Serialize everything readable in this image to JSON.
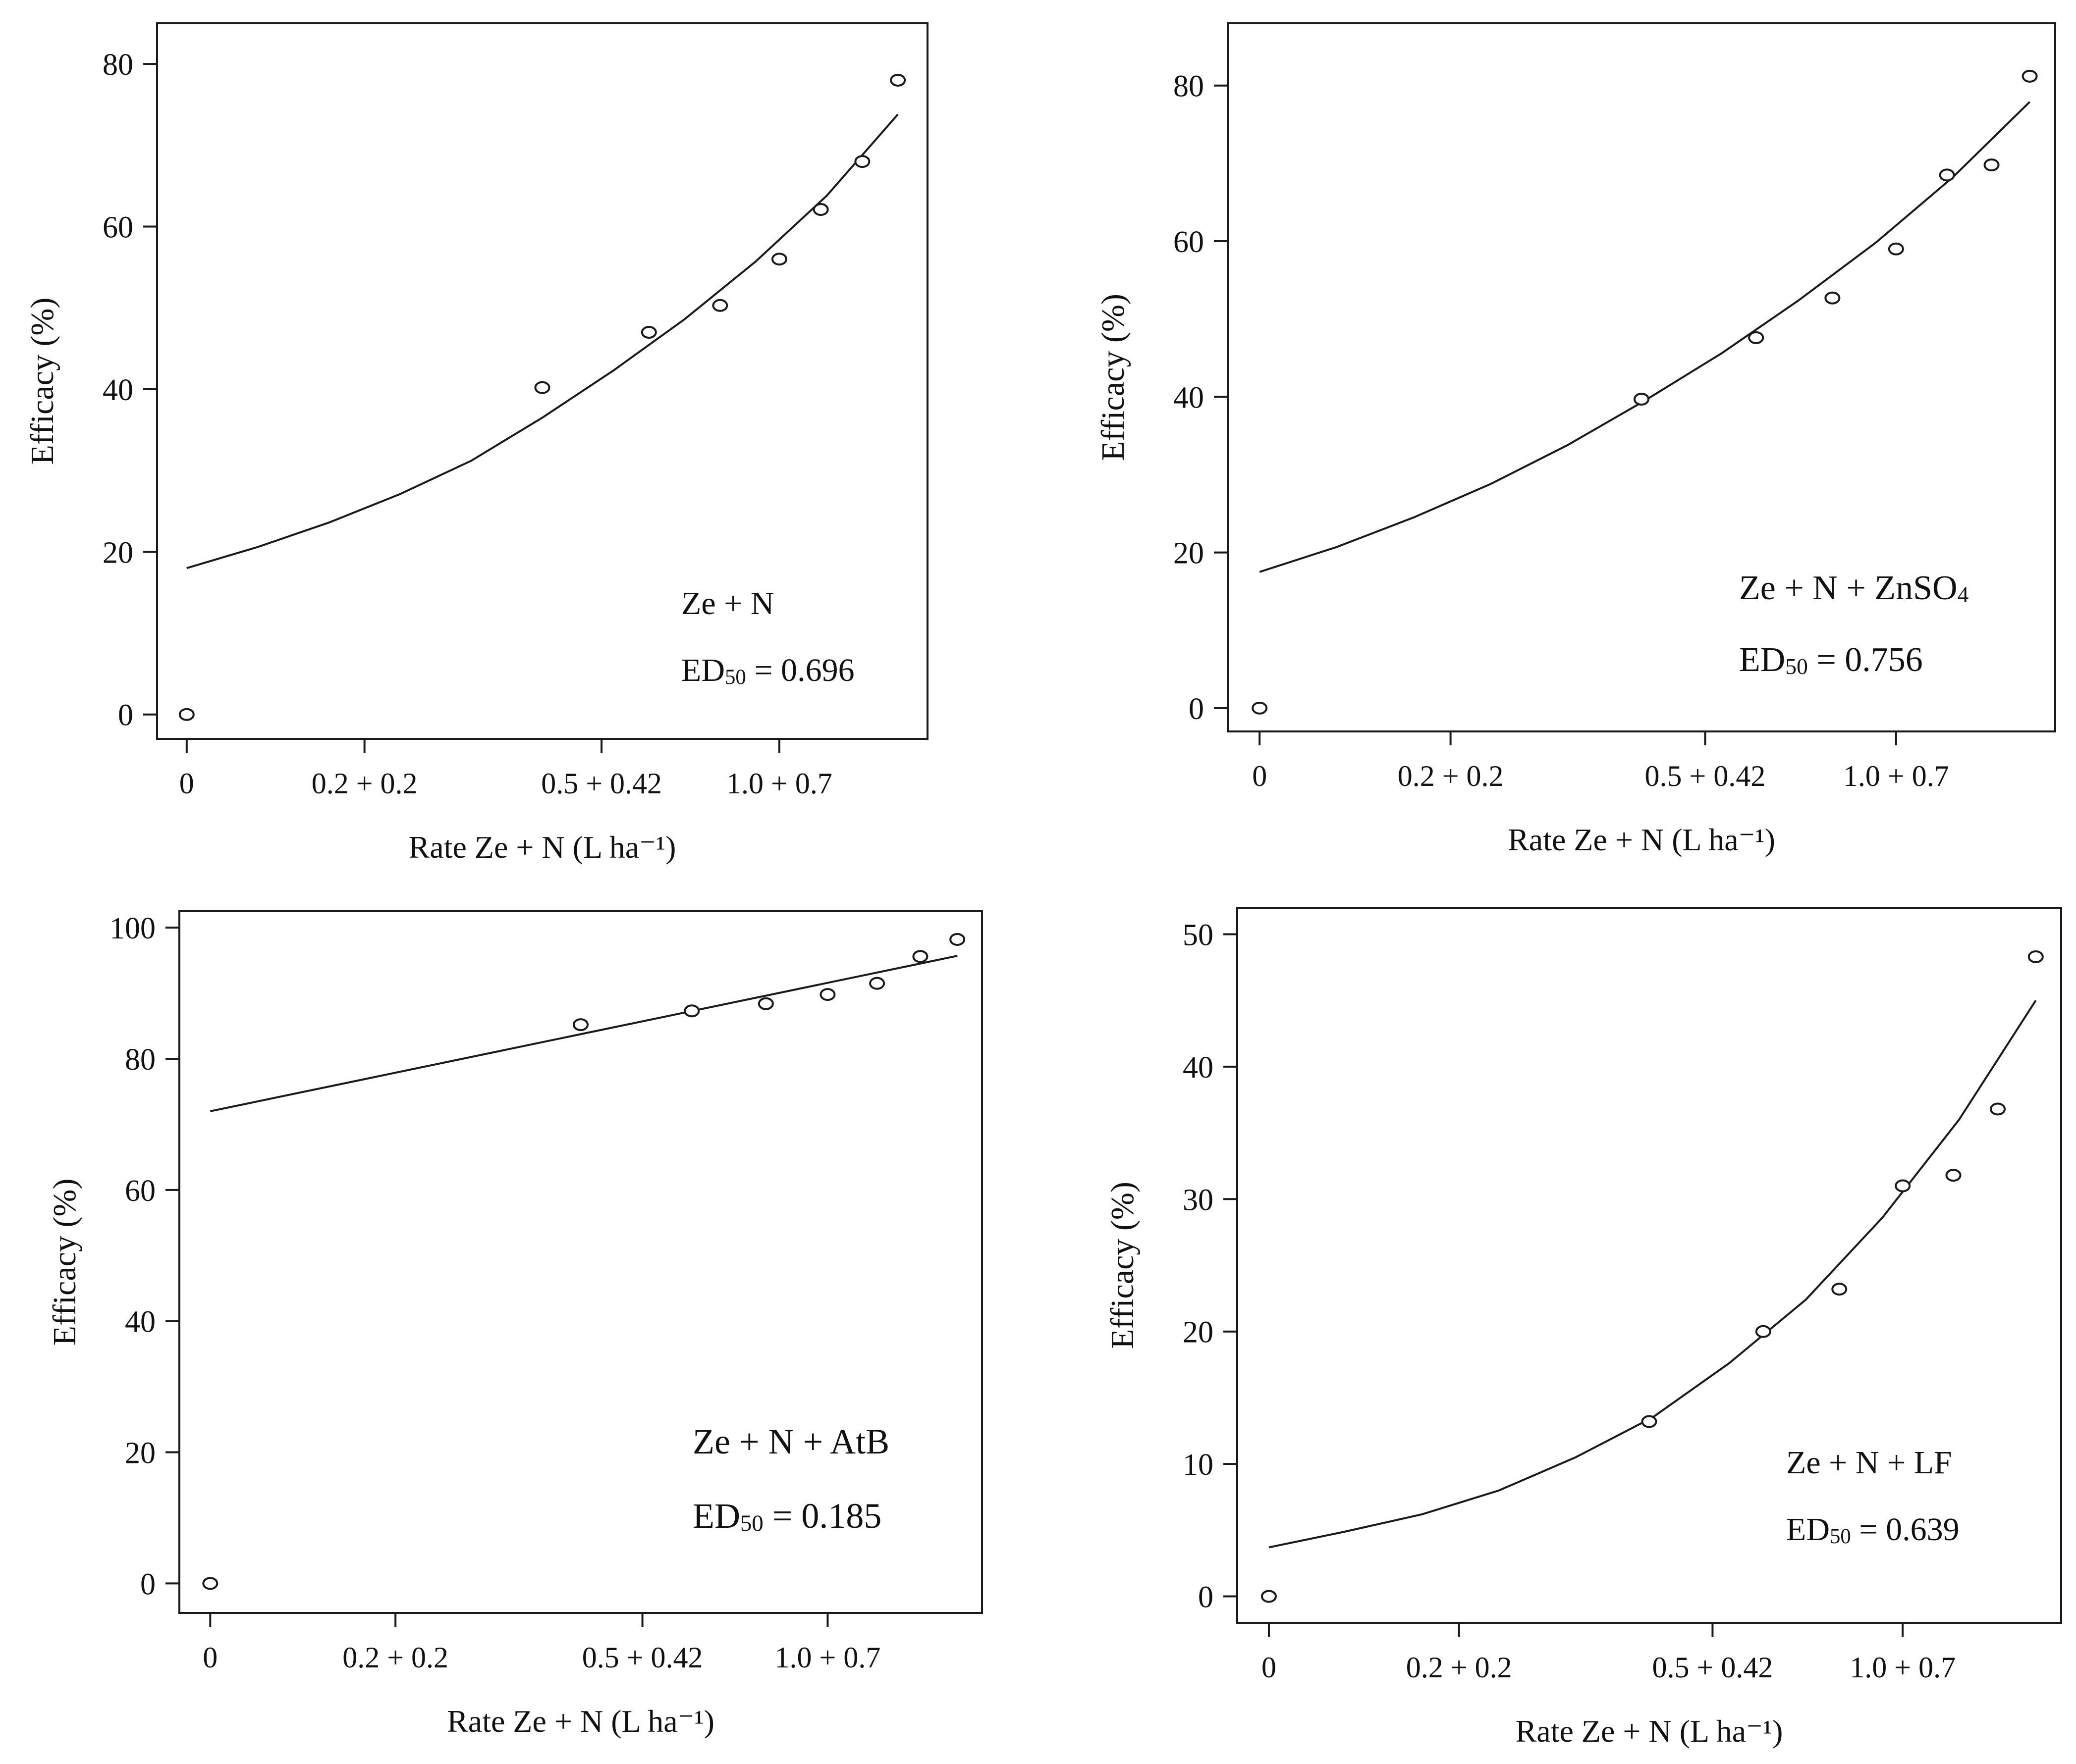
{
  "figure": {
    "panel_count": 4
  },
  "chart_data": [
    {
      "type": "scatter",
      "title": "",
      "xlabel": "Rate Ze + N (L ha⁻¹)",
      "ylabel": "Efficacy (%)",
      "xlim": [
        -0.05,
        1.25
      ],
      "ylim": [
        -3,
        85
      ],
      "x_ticks": [
        0,
        0.3,
        0.7,
        1.0
      ],
      "x_tick_labels": [
        "0",
        "0.2 + 0.2",
        "0.5 + 0.42",
        "1.0 + 0.7"
      ],
      "y_ticks": [
        0,
        20,
        40,
        60,
        80
      ],
      "points": [
        [
          0,
          0
        ],
        [
          0.6,
          40.2
        ],
        [
          0.78,
          47
        ],
        [
          0.9,
          50.3
        ],
        [
          1.0,
          56
        ],
        [
          1.07,
          62.1
        ],
        [
          1.14,
          68
        ],
        [
          1.2,
          78
        ]
      ],
      "fit": {
        "x": [
          0,
          0.12,
          0.24,
          0.36,
          0.48,
          0.6,
          0.72,
          0.84,
          0.96,
          1.08,
          1.2
        ],
        "y": [
          18,
          20.6,
          23.6,
          27.1,
          31.2,
          36.5,
          42.3,
          48.6,
          55.7,
          63.8,
          73.8
        ]
      },
      "annotation": {
        "name": "Ze + N",
        "ed_label": "ED",
        "ed_sub": "50",
        "ed_value": " = 0.696"
      }
    },
    {
      "type": "scatter",
      "title": "",
      "xlabel": "Rate Ze + N (L ha⁻¹)",
      "ylabel": "Efficacy (%)",
      "xlim": [
        -0.05,
        1.25
      ],
      "ylim": [
        -3,
        88
      ],
      "x_ticks": [
        0,
        0.3,
        0.7,
        1.0
      ],
      "x_tick_labels": [
        "0",
        "0.2 + 0.2",
        "0.5 + 0.42",
        "1.0 + 0.7"
      ],
      "y_ticks": [
        0,
        20,
        40,
        60,
        80
      ],
      "points": [
        [
          0,
          0
        ],
        [
          0.6,
          39.7
        ],
        [
          0.78,
          47.6
        ],
        [
          0.9,
          52.7
        ],
        [
          1.0,
          59
        ],
        [
          1.08,
          68.5
        ],
        [
          1.15,
          69.8
        ],
        [
          1.21,
          81.2
        ]
      ],
      "fit": {
        "x": [
          0,
          0.121,
          0.242,
          0.363,
          0.484,
          0.605,
          0.726,
          0.847,
          0.968,
          1.089,
          1.21
        ],
        "y": [
          17.5,
          20.7,
          24.5,
          28.8,
          33.8,
          39.5,
          45.6,
          52.4,
          59.8,
          68.2,
          77.9
        ]
      },
      "annotation": {
        "name": "Ze + N + ZnSO",
        "name_sub": "4",
        "ed_label": "ED",
        "ed_sub": "50",
        "ed_value": " = 0.756"
      }
    },
    {
      "type": "scatter",
      "title": "",
      "xlabel": "Rate Ze + N (L ha⁻¹)",
      "ylabel": "Efficacy (%)",
      "xlim": [
        -0.05,
        1.25
      ],
      "ylim": [
        -4.5,
        102.5
      ],
      "x_ticks": [
        0,
        0.3,
        0.7,
        1.0
      ],
      "x_tick_labels": [
        "0",
        "0.2 + 0.2",
        "0.5 + 0.42",
        "1.0 + 0.7"
      ],
      "y_ticks": [
        0,
        20,
        40,
        60,
        80,
        100
      ],
      "points": [
        [
          0,
          0
        ],
        [
          0.6,
          85.2
        ],
        [
          0.78,
          87.3
        ],
        [
          0.9,
          88.4
        ],
        [
          1.0,
          89.8
        ],
        [
          1.08,
          91.5
        ],
        [
          1.15,
          95.6
        ],
        [
          1.21,
          98.2
        ]
      ],
      "fit": {
        "x": [
          0,
          1.21
        ],
        "y": [
          72,
          95.7
        ]
      },
      "annotation": {
        "name": "Ze + N + AtB",
        "ed_label": "ED",
        "ed_sub": "50",
        "ed_value": " = 0.185"
      }
    },
    {
      "type": "scatter",
      "title": "",
      "xlabel": "Rate Ze + N (L ha⁻¹)",
      "ylabel": "Efficacy (%)",
      "xlim": [
        -0.05,
        1.25
      ],
      "ylim": [
        -2,
        52
      ],
      "x_ticks": [
        0,
        0.3,
        0.7,
        1.0
      ],
      "x_tick_labels": [
        "0",
        "0.2 + 0.2",
        "0.5 + 0.42",
        "1.0 + 0.7"
      ],
      "y_ticks": [
        0,
        10,
        20,
        30,
        40,
        50
      ],
      "points": [
        [
          0,
          0
        ],
        [
          0.6,
          13.2
        ],
        [
          0.78,
          20
        ],
        [
          0.9,
          23.2
        ],
        [
          1.0,
          31
        ],
        [
          1.08,
          31.8
        ],
        [
          1.15,
          36.8
        ],
        [
          1.21,
          48.3
        ]
      ],
      "fit": {
        "x": [
          0,
          0.121,
          0.242,
          0.363,
          0.484,
          0.605,
          0.726,
          0.847,
          0.968,
          1.089,
          1.21
        ],
        "y": [
          3.7,
          4.9,
          6.2,
          8,
          10.5,
          13.5,
          17.6,
          22.4,
          28.6,
          36,
          45
        ]
      },
      "annotation": {
        "name": "Ze + N + LF",
        "ed_label": "ED",
        "ed_sub": "50",
        "ed_value": " = 0.639"
      }
    }
  ]
}
